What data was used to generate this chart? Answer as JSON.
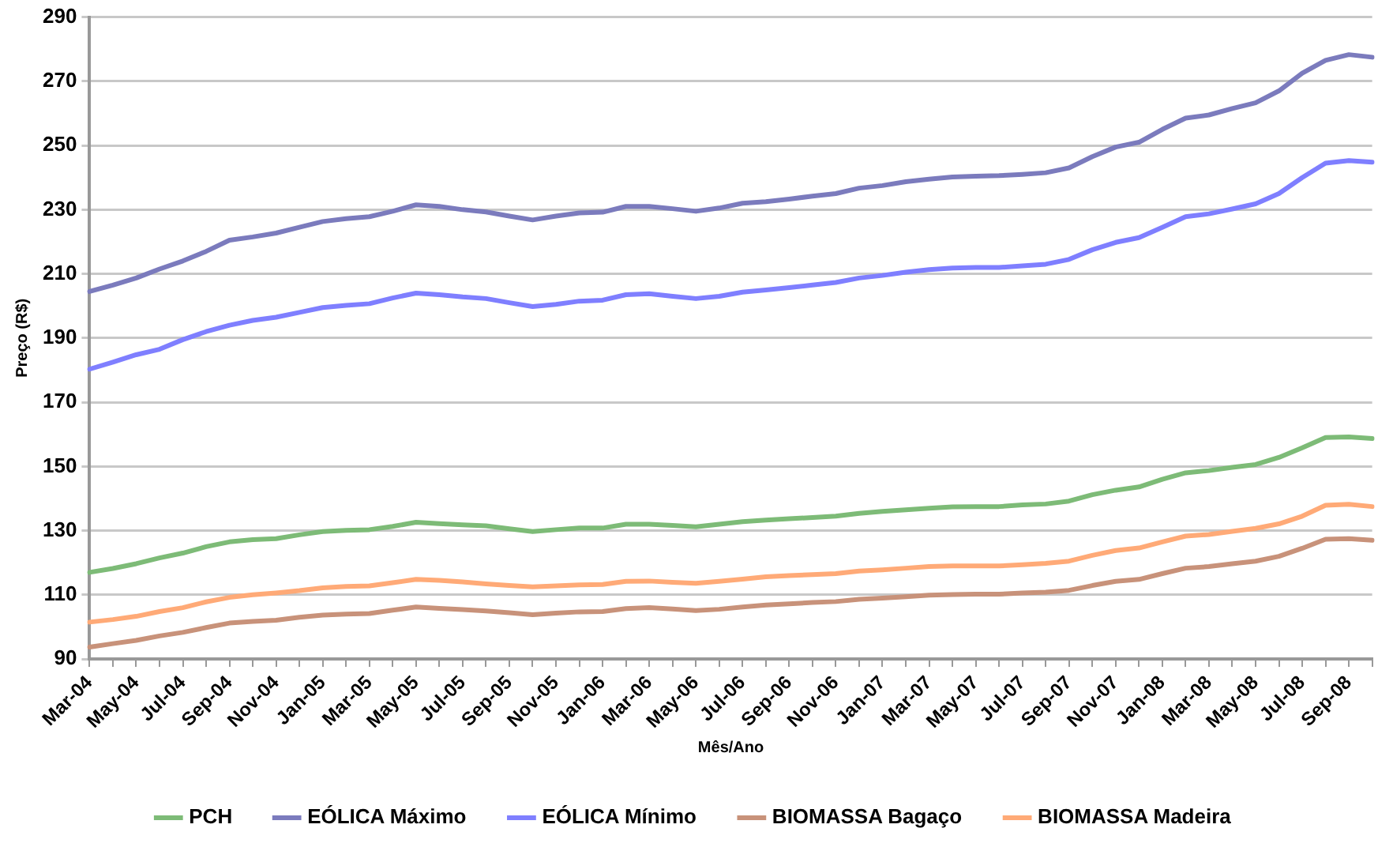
{
  "chart_data": {
    "type": "line",
    "xlabel": "Mês/Ano",
    "ylabel": "Preço (R$)",
    "categories": [
      "Mar-04",
      null,
      "May-04",
      null,
      "Jul-04",
      null,
      "Sep-04",
      null,
      "Nov-04",
      null,
      "Jan-05",
      null,
      "Mar-05",
      null,
      "May-05",
      null,
      "Jul-05",
      null,
      "Sep-05",
      null,
      "Nov-05",
      null,
      "Jan-06",
      null,
      "Mar-06",
      null,
      "May-06",
      null,
      "Jul-06",
      null,
      "Sep-06",
      null,
      "Nov-06",
      null,
      "Jan-07",
      null,
      "Mar-07",
      null,
      "May-07",
      null,
      "Jul-07",
      null,
      "Sep-07",
      null,
      "Nov-07",
      null,
      "Jan-08",
      null,
      "Mar-08",
      null,
      "May-08",
      null,
      "Jul-08",
      null,
      "Sep-08",
      null
    ],
    "ylim": [
      90,
      290
    ],
    "yticks": [
      90,
      110,
      130,
      150,
      170,
      190,
      210,
      230,
      250,
      270,
      290
    ],
    "grid": "y",
    "legend": "bottom",
    "marker": "none",
    "line_style": "solid",
    "series": [
      {
        "name": "PCH",
        "color": "#7dbb77",
        "values": [
          117,
          118.2,
          119.7,
          121.5,
          123,
          125,
          126.5,
          127.2,
          127.5,
          128.7,
          129.7,
          130.1,
          130.3,
          131.3,
          132.6,
          132.2,
          131.8,
          131.5,
          130.6,
          129.7,
          130.3,
          130.8,
          130.8,
          132,
          132,
          131.6,
          131.2,
          132,
          132.8,
          133.3,
          133.7,
          134.1,
          134.5,
          135.4,
          136,
          136.5,
          137,
          137.4,
          137.5,
          137.5,
          138,
          138.3,
          139.2,
          141.2,
          142.6,
          143.6,
          146,
          148,
          148.7,
          149.7,
          150.6,
          152.8,
          155.8,
          159,
          159.2,
          158.7
        ]
      },
      {
        "name": "EÓLICA Máximo",
        "color": "#7b7bbd",
        "values": [
          204.5,
          206.5,
          208.7,
          211.5,
          214,
          217,
          220.5,
          221.5,
          222.7,
          224.5,
          226.3,
          227.2,
          227.8,
          229.5,
          231.5,
          231,
          230,
          229.3,
          228,
          226.8,
          228,
          229,
          229.2,
          231,
          231,
          230.3,
          229.5,
          230.5,
          232,
          232.5,
          233.3,
          234.2,
          235,
          236.7,
          237.5,
          238.7,
          239.5,
          240.2,
          240.4,
          240.6,
          241,
          241.5,
          243,
          246.5,
          249.5,
          251,
          255,
          258.5,
          259.5,
          261.5,
          263.3,
          267,
          272.5,
          276.5,
          278.3,
          277.5
        ]
      },
      {
        "name": "EÓLICA Mínimo",
        "color": "#7f7fff",
        "values": [
          180.3,
          182.5,
          184.8,
          186.5,
          189.5,
          192,
          194,
          195.5,
          196.5,
          198,
          199.5,
          200.2,
          200.7,
          202.5,
          204,
          203.5,
          202.8,
          202.3,
          201,
          199.8,
          200.5,
          201.5,
          201.8,
          203.5,
          203.8,
          203,
          202.3,
          203,
          204.3,
          205,
          205.7,
          206.5,
          207.3,
          208.7,
          209.5,
          210.5,
          211.3,
          211.8,
          212,
          212,
          212.5,
          213,
          214.5,
          217.5,
          219.8,
          221.3,
          224.5,
          227.8,
          228.7,
          230.2,
          231.8,
          235,
          240,
          244.5,
          245.3,
          244.8
        ]
      },
      {
        "name": "BIOMASSA Bagaço",
        "color": "#c8927a",
        "values": [
          93.7,
          94.8,
          95.8,
          97.2,
          98.3,
          99.8,
          101.2,
          101.7,
          102.1,
          103,
          103.7,
          104,
          104.2,
          105.2,
          106.2,
          105.8,
          105.4,
          105,
          104.4,
          103.8,
          104.3,
          104.7,
          104.8,
          105.7,
          106,
          105.6,
          105.1,
          105.5,
          106.2,
          106.8,
          107.2,
          107.6,
          107.9,
          108.6,
          109,
          109.4,
          109.9,
          110.1,
          110.2,
          110.2,
          110.6,
          110.8,
          111.4,
          112.9,
          114.2,
          114.8,
          116.6,
          118.3,
          118.8,
          119.7,
          120.5,
          122,
          124.5,
          127.3,
          127.5,
          127
        ]
      },
      {
        "name": "BIOMASSA Madeira",
        "color": "#ffaa77",
        "values": [
          101.5,
          102.3,
          103.3,
          104.8,
          106,
          107.8,
          109.2,
          110,
          110.6,
          111.3,
          112.2,
          112.6,
          112.8,
          113.8,
          114.8,
          114.5,
          114,
          113.4,
          112.9,
          112.5,
          112.8,
          113.1,
          113.2,
          114.2,
          114.3,
          113.9,
          113.6,
          114.2,
          114.9,
          115.6,
          116,
          116.3,
          116.6,
          117.4,
          117.8,
          118.3,
          118.8,
          119,
          119,
          119,
          119.4,
          119.8,
          120.5,
          122.3,
          123.8,
          124.6,
          126.5,
          128.3,
          128.8,
          129.8,
          130.7,
          132.1,
          134.5,
          137.9,
          138.2,
          137.5
        ]
      }
    ]
  }
}
